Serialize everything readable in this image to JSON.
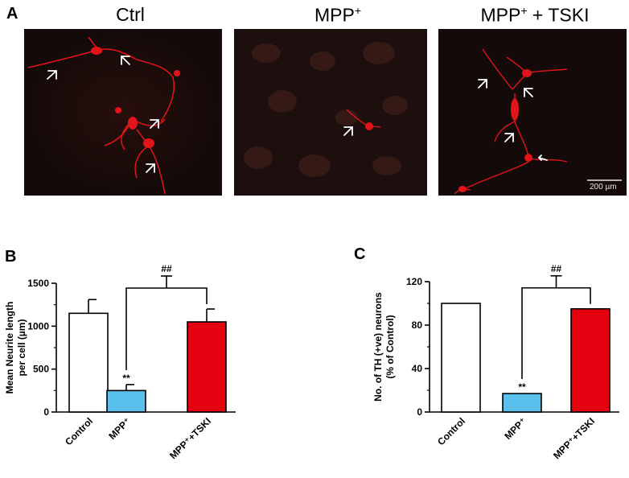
{
  "panel_a": {
    "letter": "A",
    "titles": [
      {
        "main": "Ctrl",
        "sup": ""
      },
      {
        "main": "MPP",
        "sup": "+"
      },
      {
        "main": "MPP",
        "sup": "+",
        "suffix": " + TSKI"
      }
    ],
    "scale_bar_label": "200 µm",
    "colors": {
      "background": "#140a09",
      "stain": "#e0141a",
      "arrow": "#ffffff"
    }
  },
  "chart_data": [
    {
      "panel": "B",
      "type": "bar",
      "categories": [
        "Control",
        "MPP⁺",
        "MPP⁺+TSKI"
      ],
      "values": [
        1150,
        250,
        1050
      ],
      "errors": [
        160,
        70,
        150
      ],
      "colors": [
        "#ffffff",
        "#5bc0eb",
        "#e3000f"
      ],
      "ylabel_line1": "Mean Neurite length",
      "ylabel_line2": "per cell (µm)",
      "yticks": [
        0,
        500,
        1000,
        1500
      ],
      "ylim": [
        0,
        1500
      ],
      "annotations": {
        "bar_sig": "**",
        "bracket_sig": "##"
      }
    },
    {
      "panel": "C",
      "type": "bar",
      "categories": [
        "Control",
        "MPP⁺",
        "MPP⁺+TSKI"
      ],
      "values": [
        100,
        17,
        95
      ],
      "errors": [
        0,
        0,
        0
      ],
      "colors": [
        "#ffffff",
        "#5bc0eb",
        "#e3000f"
      ],
      "ylabel_line1": "No. of TH (+ve) neurons",
      "ylabel_line2": "(% of Control)",
      "yticks": [
        0,
        40,
        80,
        120
      ],
      "ylim": [
        0,
        120
      ],
      "annotations": {
        "bar_sig": "**",
        "bracket_sig": "##"
      }
    }
  ]
}
